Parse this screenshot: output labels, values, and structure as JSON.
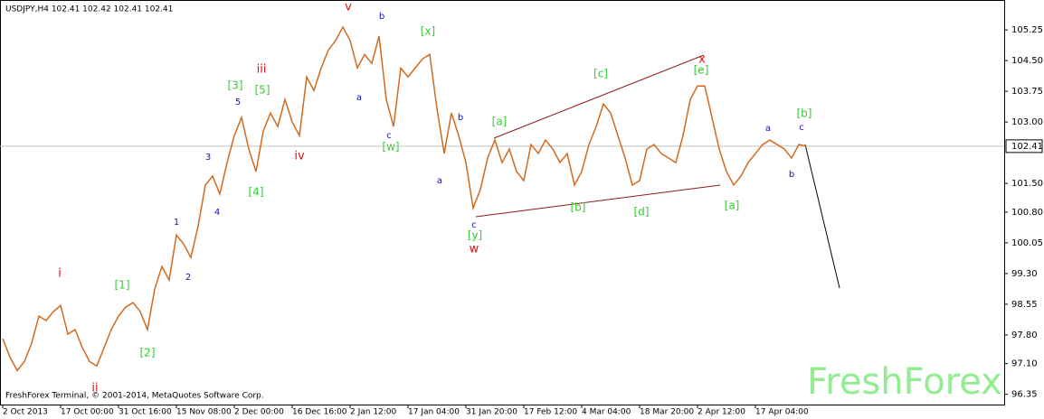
{
  "chart_data": {
    "type": "line",
    "title": "USDJPY,H4  102.41 102.42 102.41 102.41",
    "footer": "FreshForex Terminal, © 2001-2014, MetaQuotes Software Corp.",
    "watermark": "FreshForex",
    "categories": [
      "2 Oct 2013",
      null,
      null,
      null,
      null,
      null,
      null,
      null,
      "17 Oct 00:00",
      null,
      null,
      null,
      null,
      null,
      null,
      null,
      "31 Oct 16:00",
      null,
      null,
      null,
      null,
      null,
      null,
      null,
      "15 Nov 08:00",
      null,
      null,
      null,
      null,
      null,
      null,
      null,
      "2 Dec 00:00",
      null,
      null,
      null,
      null,
      null,
      null,
      null,
      "16 Dec 16:00",
      null,
      null,
      null,
      null,
      null,
      null,
      null,
      "2 Jan 12:00",
      null,
      null,
      null,
      null,
      null,
      null,
      null,
      "17 Jan 04:00",
      null,
      null,
      null,
      null,
      null,
      null,
      null,
      "31 Jan 20:00",
      null,
      null,
      null,
      null,
      null,
      null,
      null,
      "17 Feb 12:00",
      null,
      null,
      null,
      null,
      null,
      null,
      null,
      "4 Mar 04:00",
      null,
      null,
      null,
      null,
      null,
      null,
      null,
      "18 Mar 20:00",
      null,
      null,
      null,
      null,
      null,
      null,
      null,
      "2 Apr 12:00",
      null,
      null,
      null,
      null,
      null,
      null,
      null,
      "17 Apr 04:00",
      null,
      null,
      null,
      null,
      null,
      null,
      null
    ],
    "series": [
      {
        "name": "USDJPY",
        "color": "#d2691e",
        "values": [
          97.71,
          97.26,
          96.93,
          97.15,
          97.6,
          98.26,
          98.15,
          98.37,
          98.52,
          97.82,
          97.93,
          97.49,
          97.15,
          97.04,
          97.49,
          97.93,
          98.26,
          98.48,
          98.59,
          98.37,
          97.93,
          98.92,
          99.47,
          99.14,
          100.24,
          100.02,
          99.69,
          100.46,
          101.46,
          101.68,
          101.24,
          102.01,
          102.67,
          103.11,
          102.34,
          101.79,
          102.78,
          103.22,
          102.89,
          103.55,
          103.0,
          102.67,
          104.1,
          103.77,
          104.32,
          104.76,
          104.99,
          105.32,
          104.99,
          104.32,
          104.65,
          104.43,
          105.1,
          103.55,
          102.89,
          104.32,
          104.1,
          104.32,
          104.54,
          104.65,
          103.33,
          102.23,
          103.22,
          102.67,
          102.01,
          100.9,
          101.35,
          102.12,
          102.56,
          102.01,
          102.34,
          101.79,
          101.57,
          102.45,
          102.23,
          102.56,
          102.34,
          102.01,
          102.23,
          101.46,
          101.79,
          102.45,
          102.89,
          103.44,
          103.22,
          102.67,
          102.12,
          101.46,
          101.57,
          102.34,
          102.45,
          102.23,
          102.12,
          102.01,
          102.67,
          103.55,
          103.88,
          103.88,
          103.11,
          102.34,
          101.79,
          101.46,
          101.68,
          102.01,
          102.23,
          102.45,
          102.56,
          102.45,
          102.34,
          102.12,
          102.45,
          102.41
        ]
      }
    ],
    "last_price": 102.41,
    "ylim": [
      96.1,
      105.98
    ],
    "yticks": [
      105.25,
      {
        "value": 104.5,
        "label": "104.50"
      },
      103.75,
      {
        "value": 103,
        "label": "103.00"
      },
      {
        "value": 101.5,
        "label": "101.50"
      },
      {
        "value": 100.8,
        "label": "100.80"
      },
      100.05,
      {
        "value": 99.3,
        "label": "99.30"
      },
      98.55,
      {
        "value": 97.8,
        "label": "97.80"
      },
      {
        "value": 97.1,
        "label": "97.10"
      },
      96.35
    ],
    "grid": false,
    "annotations": [
      "i",
      "ii",
      "[1]",
      "[2]",
      "1",
      "2",
      "3",
      "4",
      "5",
      "[3]",
      "[4]",
      "[5]",
      "iii",
      "iv",
      "v",
      "b",
      "a",
      "c",
      "[w]",
      "[x]",
      "b",
      "a",
      "c",
      "[y]",
      "w",
      "[a]",
      "[b]",
      "[c]",
      "[d]",
      "x",
      "[e]",
      "[a]",
      "a",
      "b",
      "c",
      "[b]"
    ]
  }
}
